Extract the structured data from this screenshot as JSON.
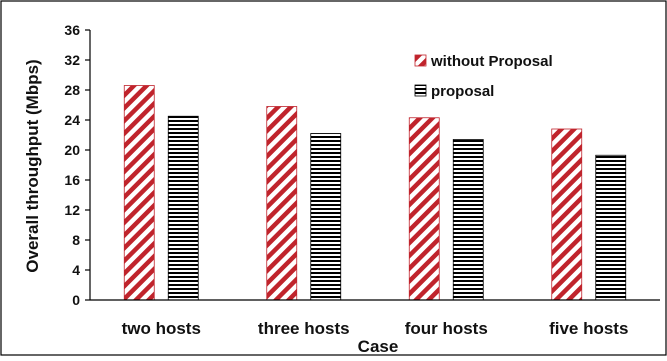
{
  "chart_data": {
    "type": "bar",
    "title": "",
    "xlabel": "Case",
    "ylabel": "Overall throughput (Mbps)",
    "categories": [
      "two hosts",
      "three hosts",
      "four hosts",
      "five hosts"
    ],
    "series": [
      {
        "name": "without Proposal",
        "values": [
          28.6,
          25.8,
          24.3,
          22.8
        ],
        "color": "#c0242c",
        "pattern": "diagonal-stripes"
      },
      {
        "name": "proposal",
        "values": [
          24.5,
          22.2,
          21.4,
          19.3
        ],
        "color": "#000000",
        "pattern": "horizontal-lines"
      }
    ],
    "ylim": [
      0,
      36
    ],
    "yticks": [
      "0",
      "4",
      "8",
      "12",
      "16",
      "20",
      "24",
      "28",
      "32",
      "36"
    ],
    "grid": false,
    "legend_position": "top-right"
  }
}
